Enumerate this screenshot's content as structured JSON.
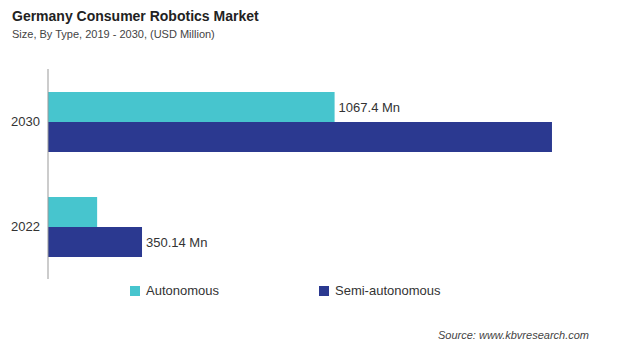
{
  "chart_data": {
    "type": "bar",
    "title": "Germany Consumer Robotics Market",
    "subtitle": "Size, By Type, 2019 - 2030, (USD Million)",
    "annotations": [
      "Source: www.kbvresearch.com"
    ],
    "orientation": "horizontal",
    "categories": [
      "2030",
      "2022"
    ],
    "series": [
      {
        "name": "Autonomous",
        "color": "#47c5ce",
        "values": [
          1067.4,
          183
        ],
        "value_labels": [
          "1067.4 Mn",
          null
        ]
      },
      {
        "name": "Semi-autonomous",
        "color": "#2b3990",
        "values": [
          1877,
          350.14
        ],
        "value_labels": [
          null,
          "350.14 Mn"
        ]
      }
    ],
    "xlim": [
      0,
      2000
    ],
    "tick_labels": "y",
    "data_labels": true,
    "legend": "bottom",
    "grid": false
  }
}
